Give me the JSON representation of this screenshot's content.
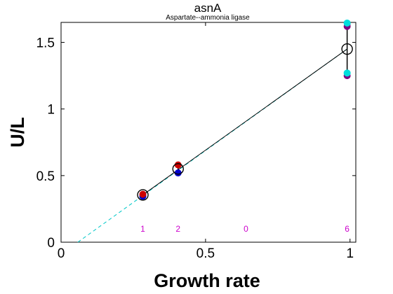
{
  "chart_data": {
    "type": "scatter",
    "title": "asnA",
    "subtitle": "Aspartate--ammonia ligase",
    "xlabel": "Growth rate",
    "ylabel": "U/L",
    "xlim": [
      0,
      1.02
    ],
    "ylim": [
      0,
      1.65
    ],
    "xticks": [
      0,
      0.5,
      1
    ],
    "xtick_labels": [
      "0",
      "0.5",
      "1"
    ],
    "yticks": [
      0,
      0.5,
      1,
      1.5
    ],
    "ytick_labels": [
      "0",
      "0.5",
      "1",
      "1.5"
    ],
    "grid": false,
    "colors": {
      "mean_marker": "#000000",
      "fit_line": "#000000",
      "extrapolation_line": "#00c8c8",
      "count_text": "#cc00cc"
    },
    "replicates": [
      {
        "x": 0.283,
        "y": 0.345,
        "color": "#0000cc"
      },
      {
        "x": 0.283,
        "y": 0.36,
        "color": "#cc0000"
      },
      {
        "x": 0.405,
        "y": 0.52,
        "color": "#0000cc"
      },
      {
        "x": 0.405,
        "y": 0.58,
        "color": "#cc0000"
      },
      {
        "x": 0.99,
        "y": 1.25,
        "color": "#800080"
      },
      {
        "x": 0.99,
        "y": 1.27,
        "color": "#00dddd"
      },
      {
        "x": 0.99,
        "y": 1.62,
        "color": "#800080"
      },
      {
        "x": 0.99,
        "y": 1.645,
        "color": "#00dddd"
      }
    ],
    "means": [
      {
        "x": 0.283,
        "y": 0.355,
        "err_low": 0.345,
        "err_high": 0.36
      },
      {
        "x": 0.405,
        "y": 0.55,
        "err_low": 0.52,
        "err_high": 0.58
      },
      {
        "x": 0.99,
        "y": 1.45,
        "err_low": 1.25,
        "err_high": 1.645
      }
    ],
    "fit_line": {
      "x": [
        0.283,
        0.99
      ],
      "y": [
        0.355,
        1.45
      ]
    },
    "extrapolation_line": {
      "x": [
        0.058,
        0.99
      ],
      "y": [
        0.0,
        1.45
      ]
    },
    "count_labels": [
      {
        "x": 0.283,
        "text": "1"
      },
      {
        "x": 0.405,
        "text": "2"
      },
      {
        "x": 0.64,
        "text": "0"
      },
      {
        "x": 0.99,
        "text": "6"
      }
    ],
    "count_label_y": 0.1
  }
}
